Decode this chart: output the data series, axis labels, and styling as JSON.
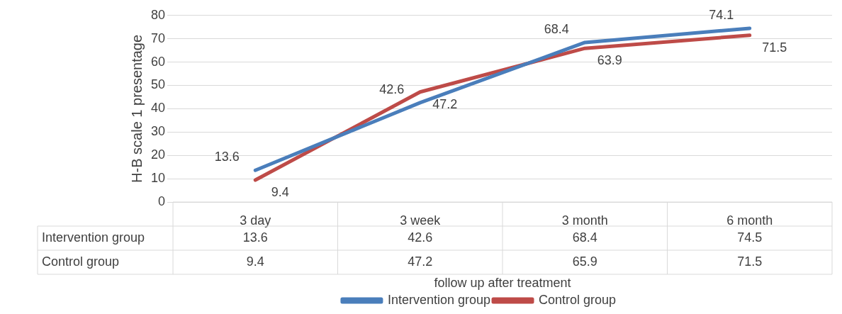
{
  "chart_data": {
    "type": "line",
    "xlabel": "follow up after treatment",
    "ylabel": "H-B scale 1 presentage",
    "categories": [
      "3 day",
      "3 week",
      "3 month",
      "6 month"
    ],
    "series": [
      {
        "name": "Intervention group",
        "color": "#4a7ebb",
        "values": [
          13.6,
          42.6,
          68.4,
          74.5
        ],
        "value_labels": [
          "13.6",
          "42.6",
          "68.4",
          "74.5"
        ]
      },
      {
        "name": "Control group",
        "color": "#be4b48",
        "values": [
          9.4,
          47.2,
          65.9,
          71.5
        ],
        "value_labels": [
          "9.4",
          "47.2",
          "65.9",
          "71.5"
        ]
      }
    ],
    "annotations": [
      {
        "text": "13.6",
        "x": "3 day",
        "y": 13.6
      },
      {
        "text": "42.6",
        "x": "3 week",
        "y": 42.6
      },
      {
        "text": "68.4",
        "x": "3 month",
        "y": 68.4
      },
      {
        "text": "74.1",
        "x": "6 month",
        "y": 74.5
      },
      {
        "text": "9.4",
        "x": "3 day",
        "y": 9.4
      },
      {
        "text": "47.2",
        "x": "3 week",
        "y": 47.2
      },
      {
        "text": "63.9",
        "x": "3 month",
        "y": 65.9
      },
      {
        "text": "71.5",
        "x": "6 month",
        "y": 71.5
      }
    ],
    "ylim": [
      0,
      80
    ],
    "yticks": [
      0,
      10,
      20,
      30,
      40,
      50,
      60,
      70,
      80
    ],
    "grid": "y",
    "legend": "bottom",
    "marker": "none",
    "line_style": "solid"
  }
}
